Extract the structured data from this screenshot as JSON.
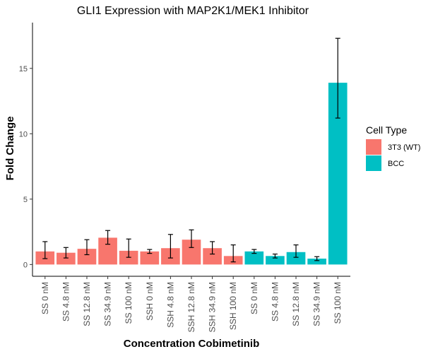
{
  "chart_data": {
    "type": "bar",
    "title": "GLI1 Expression with MAP2K1/MEK1 Inhibitor",
    "xlabel": "Concentration Cobimetinib",
    "ylabel": "Fold Change",
    "ylim": [
      -0.9,
      18.5
    ],
    "yticks": [
      0,
      5,
      10,
      15
    ],
    "grid": false,
    "legend": {
      "title": "Cell Type",
      "placement": "right",
      "entries": [
        {
          "label": "3T3 (WT)",
          "color": "#F8766D"
        },
        {
          "label": "BCC",
          "color": "#00BFC4"
        }
      ]
    },
    "categories": [
      "SS 0 nM",
      "SS 4.8 nM",
      "SS 12.8 nM",
      "SS 34.9 nM",
      "SS 100 nM",
      "SSH 0 nM",
      "SSH 4.8 nM",
      "SSH 12.8 nM",
      "SSH 34.9 nM",
      "SSH 100 nM",
      "SS 0 nM",
      "SS 4.8 nM",
      "SS 12.8 nM",
      "SS 34.9 nM",
      "SS 100 nM"
    ],
    "cell_types": [
      "3T3 (WT)",
      "3T3 (WT)",
      "3T3 (WT)",
      "3T3 (WT)",
      "3T3 (WT)",
      "3T3 (WT)",
      "3T3 (WT)",
      "3T3 (WT)",
      "3T3 (WT)",
      "3T3 (WT)",
      "BCC",
      "BCC",
      "BCC",
      "BCC",
      "BCC"
    ],
    "values": [
      1.0,
      0.9,
      1.2,
      2.05,
      1.05,
      1.0,
      1.25,
      1.9,
      1.25,
      0.65,
      1.0,
      0.65,
      0.95,
      0.45,
      13.9
    ],
    "error_low": [
      0.45,
      0.5,
      0.75,
      1.55,
      0.55,
      0.85,
      0.5,
      1.3,
      0.8,
      0.2,
      0.85,
      0.5,
      0.55,
      0.3,
      11.2
    ],
    "error_high": [
      1.75,
      1.3,
      1.9,
      2.6,
      1.95,
      1.15,
      2.3,
      2.65,
      1.75,
      1.5,
      1.15,
      0.8,
      1.5,
      0.6,
      17.3
    ]
  }
}
